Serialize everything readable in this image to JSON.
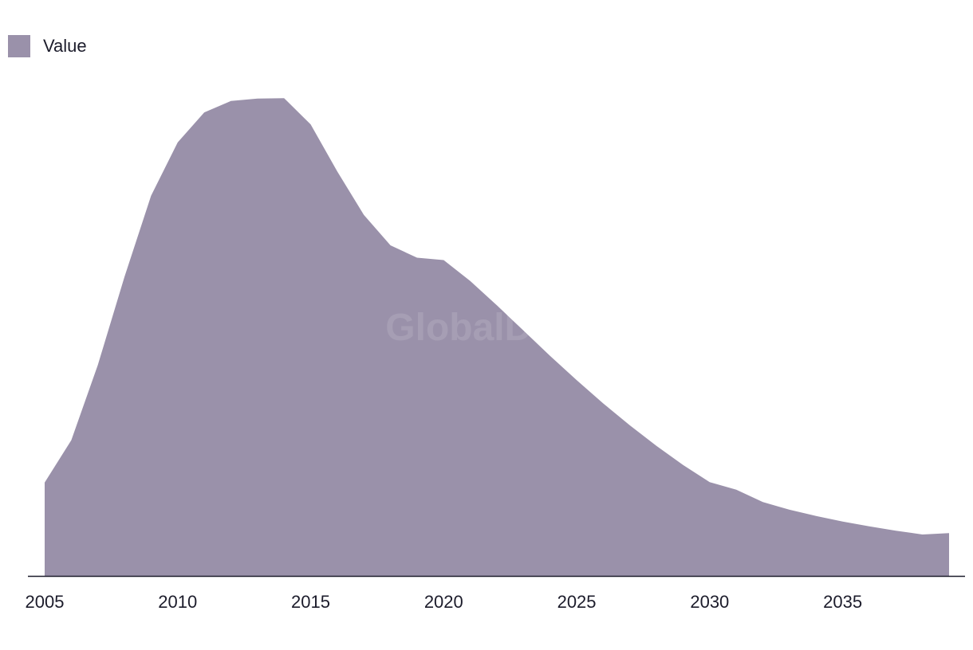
{
  "legend": {
    "label": "Value"
  },
  "watermark": "GlobalData",
  "colors": {
    "area": "#9a91aa",
    "axis": "#1c1c2b",
    "text": "#1c1c2b"
  },
  "chart_data": {
    "type": "area",
    "title": "",
    "xlabel": "",
    "ylabel": "",
    "series": [
      {
        "name": "Value",
        "x": [
          2005,
          2006,
          2007,
          2008,
          2009,
          2010,
          2011,
          2012,
          2013,
          2014,
          2015,
          2016,
          2017,
          2018,
          2019,
          2020,
          2021,
          2022,
          2023,
          2024,
          2025,
          2026,
          2027,
          2028,
          2029,
          2030,
          2031,
          2032,
          2033,
          2034,
          2035,
          2036,
          2037,
          2038,
          2039
        ],
        "values": [
          19.6,
          28.5,
          44.3,
          62.8,
          79.8,
          91.0,
          97.3,
          99.7,
          100.2,
          100.3,
          94.8,
          84.9,
          75.8,
          69.4,
          66.8,
          66.3,
          61.9,
          56.8,
          51.5,
          46.2,
          41.1,
          36.2,
          31.6,
          27.3,
          23.3,
          19.7,
          18.1,
          15.5,
          13.9,
          12.6,
          11.4,
          10.4,
          9.5,
          8.7,
          9.0
        ]
      }
    ],
    "xticks": [
      "2005",
      "2010",
      "2015",
      "2020",
      "2025",
      "2030",
      "2035"
    ],
    "xlim": [
      2005,
      2039
    ],
    "ylim": [
      0,
      100
    ],
    "grid": false,
    "legend_position": "top-left"
  }
}
